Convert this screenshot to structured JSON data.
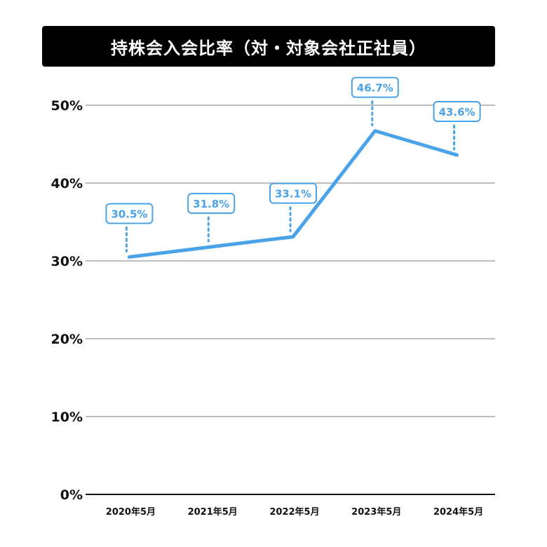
{
  "chart_data": {
    "type": "line",
    "title": "持株会入会比率（対・対象会社正社員）",
    "xlabel": "",
    "ylabel": "",
    "categories": [
      "2020年5月",
      "2021年5月",
      "2022年5月",
      "2023年5月",
      "2024年5月"
    ],
    "series": [
      {
        "values": [
          30.5,
          31.8,
          33.1,
          46.7,
          43.6
        ],
        "labels": [
          "30.5%",
          "31.8%",
          "33.1%",
          "46.7%",
          "43.6%"
        ]
      }
    ],
    "ylim": [
      0,
      50
    ],
    "yticks": [
      0,
      10,
      20,
      30,
      40,
      50
    ],
    "ytick_labels": [
      "0%",
      "10%",
      "20%",
      "30%",
      "40%",
      "50%"
    ],
    "grid": true,
    "legend": "none",
    "colors": {
      "line": "#4aa3e8",
      "grid": "#aaaaaa",
      "axis": "#111111",
      "title_bg": "#000000",
      "title_fg": "#ffffff"
    }
  }
}
